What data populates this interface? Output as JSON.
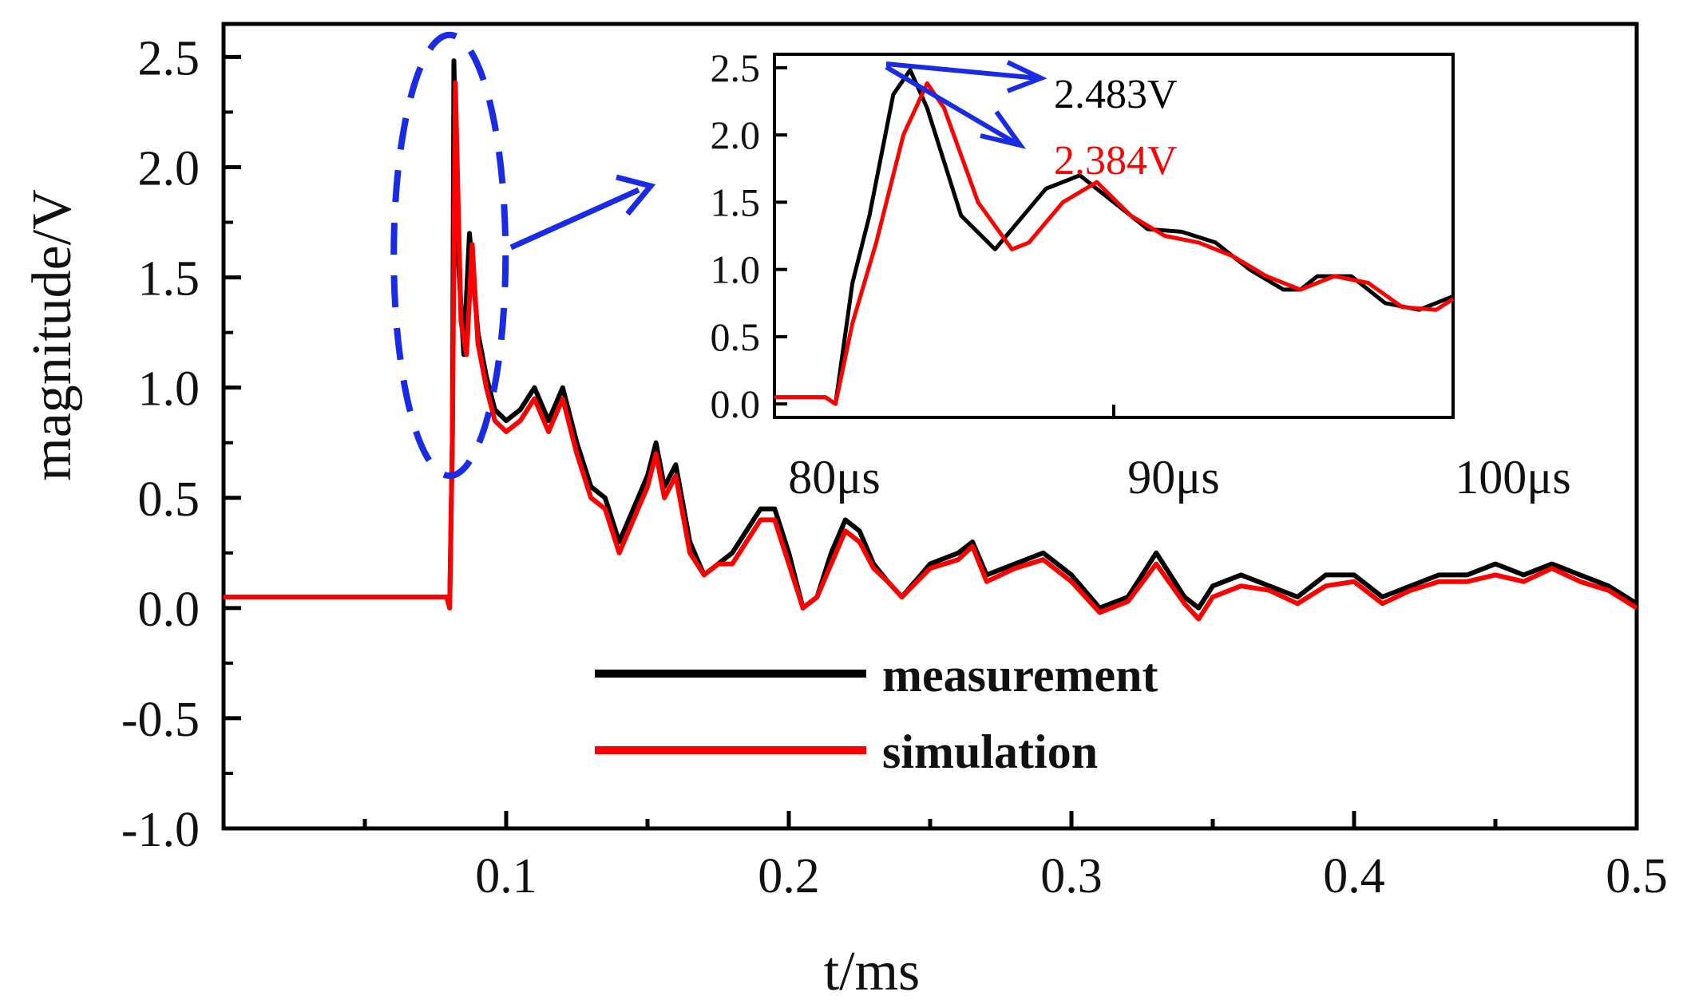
{
  "chart_data": {
    "type": "line",
    "title": "",
    "xlabel": "t/ms",
    "ylabel": "magnitude/V",
    "xlim": [
      0,
      0.5
    ],
    "ylim": [
      -1.0,
      2.5
    ],
    "xticks": [
      "0.1",
      "0.2",
      "0.3",
      "0.4",
      "0.5"
    ],
    "yticks": [
      "2.5",
      "2.0",
      "1.5",
      "1.0",
      "0.5",
      "0.0",
      "-0.5",
      "-1.0"
    ],
    "legend": [
      "measurement",
      "simulation"
    ],
    "legend_position": "bottom-center",
    "series": [
      {
        "name": "measurement",
        "color": "#000000",
        "x": [
          0,
          0.079,
          0.08,
          0.081,
          0.0815,
          0.083,
          0.085,
          0.087,
          0.09,
          0.093,
          0.096,
          0.1,
          0.105,
          0.11,
          0.115,
          0.12,
          0.125,
          0.13,
          0.135,
          0.14,
          0.145,
          0.15,
          0.153,
          0.156,
          0.16,
          0.165,
          0.17,
          0.175,
          0.18,
          0.19,
          0.195,
          0.2,
          0.205,
          0.21,
          0.215,
          0.22,
          0.225,
          0.23,
          0.235,
          0.24,
          0.25,
          0.26,
          0.265,
          0.27,
          0.28,
          0.29,
          0.3,
          0.31,
          0.32,
          0.33,
          0.34,
          0.345,
          0.35,
          0.36,
          0.37,
          0.38,
          0.39,
          0.4,
          0.41,
          0.42,
          0.43,
          0.44,
          0.45,
          0.46,
          0.47,
          0.48,
          0.49,
          0.5
        ],
        "y": [
          0.05,
          0.05,
          0.0,
          0.8,
          2.483,
          1.6,
          1.15,
          1.7,
          1.25,
          1.05,
          0.9,
          0.85,
          0.9,
          1.0,
          0.85,
          1.0,
          0.75,
          0.55,
          0.5,
          0.3,
          0.45,
          0.6,
          0.75,
          0.55,
          0.65,
          0.3,
          0.15,
          0.2,
          0.25,
          0.45,
          0.45,
          0.25,
          0.0,
          0.05,
          0.25,
          0.4,
          0.35,
          0.2,
          0.12,
          0.05,
          0.2,
          0.25,
          0.3,
          0.15,
          0.2,
          0.25,
          0.15,
          0.0,
          0.05,
          0.25,
          0.05,
          0.0,
          0.1,
          0.15,
          0.1,
          0.05,
          0.15,
          0.15,
          0.05,
          0.1,
          0.15,
          0.15,
          0.2,
          0.15,
          0.2,
          0.15,
          0.1,
          0.02
        ]
      },
      {
        "name": "simulation",
        "color": "#ff0000",
        "x": [
          0,
          0.079,
          0.08,
          0.081,
          0.082,
          0.084,
          0.086,
          0.088,
          0.09,
          0.093,
          0.096,
          0.1,
          0.105,
          0.11,
          0.115,
          0.12,
          0.125,
          0.13,
          0.135,
          0.14,
          0.145,
          0.15,
          0.153,
          0.156,
          0.16,
          0.165,
          0.17,
          0.175,
          0.18,
          0.19,
          0.195,
          0.2,
          0.205,
          0.21,
          0.215,
          0.22,
          0.225,
          0.23,
          0.235,
          0.24,
          0.25,
          0.26,
          0.265,
          0.27,
          0.28,
          0.29,
          0.3,
          0.31,
          0.32,
          0.33,
          0.34,
          0.345,
          0.35,
          0.36,
          0.37,
          0.38,
          0.39,
          0.4,
          0.41,
          0.42,
          0.43,
          0.44,
          0.45,
          0.46,
          0.47,
          0.48,
          0.49,
          0.5
        ],
        "y": [
          0.05,
          0.05,
          0.0,
          0.8,
          2.384,
          1.3,
          1.15,
          1.65,
          1.2,
          1.0,
          0.85,
          0.8,
          0.85,
          0.95,
          0.8,
          0.95,
          0.7,
          0.5,
          0.45,
          0.25,
          0.4,
          0.55,
          0.7,
          0.5,
          0.6,
          0.25,
          0.15,
          0.2,
          0.2,
          0.4,
          0.4,
          0.2,
          0.0,
          0.05,
          0.2,
          0.35,
          0.3,
          0.18,
          0.12,
          0.05,
          0.18,
          0.22,
          0.28,
          0.12,
          0.18,
          0.22,
          0.12,
          -0.02,
          0.03,
          0.2,
          0.02,
          -0.05,
          0.05,
          0.1,
          0.08,
          0.02,
          0.1,
          0.12,
          0.02,
          0.08,
          0.12,
          0.12,
          0.15,
          0.12,
          0.18,
          0.12,
          0.08,
          0.0
        ]
      }
    ],
    "highlight": {
      "shape": "ellipse",
      "color": "#1a2be6",
      "x_center": 0.08,
      "y_range": [
        0.6,
        2.6
      ]
    },
    "inset": {
      "type": "line",
      "xlim": [
        80,
        100
      ],
      "ylim": [
        0.0,
        2.5
      ],
      "xtick_values": [
        80,
        90,
        100
      ],
      "xticks": [
        "80μs",
        "90μs",
        "100μs"
      ],
      "yticks": [
        "2.5",
        "2.0",
        "1.5",
        "1.0",
        "0.5",
        "0.0"
      ],
      "series": [
        {
          "name": "measurement",
          "color": "#000000",
          "x": [
            80,
            81.5,
            81.8,
            82.3,
            82.8,
            83.5,
            84.0,
            84.5,
            85.5,
            86.5,
            87.0,
            88.0,
            89.0,
            90.0,
            91.0,
            92.0,
            93.0,
            94.0,
            95.0,
            95.5,
            96.0,
            97.0,
            98.0,
            99.0,
            100.0
          ],
          "y": [
            0.05,
            0.05,
            0.0,
            0.9,
            1.4,
            2.3,
            2.483,
            2.2,
            1.4,
            1.15,
            1.3,
            1.6,
            1.7,
            1.5,
            1.3,
            1.28,
            1.2,
            1.0,
            0.85,
            0.85,
            0.95,
            0.95,
            0.75,
            0.7,
            0.8
          ]
        },
        {
          "name": "simulation",
          "color": "#ff0000",
          "x": [
            80,
            81.5,
            81.8,
            82.3,
            83.0,
            83.8,
            84.5,
            85.0,
            86.0,
            87.0,
            87.5,
            88.5,
            89.5,
            90.5,
            91.5,
            92.5,
            93.5,
            94.5,
            95.5,
            96.0,
            96.5,
            97.5,
            98.5,
            99.5,
            100.0
          ],
          "y": [
            0.05,
            0.05,
            0.0,
            0.6,
            1.2,
            2.0,
            2.384,
            2.2,
            1.5,
            1.15,
            1.2,
            1.5,
            1.65,
            1.4,
            1.25,
            1.2,
            1.1,
            0.95,
            0.85,
            0.9,
            0.95,
            0.9,
            0.72,
            0.7,
            0.78
          ]
        }
      ],
      "annotations": [
        {
          "text": "2.483V",
          "color": "#000000"
        },
        {
          "text": "2.384V",
          "color": "#ff0000"
        }
      ],
      "arrow_color": "#1a2be6"
    }
  }
}
